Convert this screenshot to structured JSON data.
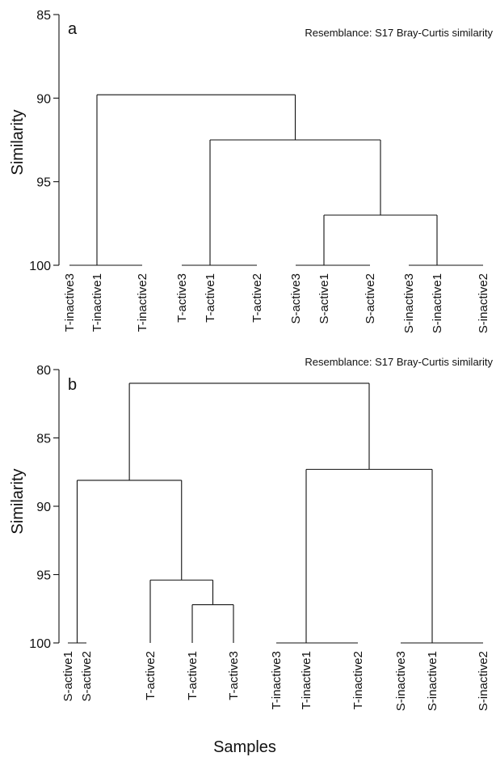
{
  "chart_data": [
    {
      "type": "dendrogram",
      "panel": "a",
      "subtitle": "Resemblance: S17 Bray-Curtis similarity",
      "ylabel": "Similarity",
      "ylim": [
        85,
        100
      ],
      "yticks": [
        85,
        90,
        95,
        100
      ],
      "leaves": [
        "T-inactive3",
        "T-inactive1",
        "T-inactive2",
        "T-active3",
        "T-active1",
        "T-active2",
        "S-active3",
        "S-active1",
        "S-active2",
        "S-inactive3",
        "S-inactive1",
        "S-inactive2"
      ],
      "leaf_groups": [
        {
          "members": [
            0,
            1,
            2
          ],
          "stem_leaf": 1,
          "similarity": 100
        },
        {
          "members": [
            3,
            4,
            5
          ],
          "stem_leaf": 4,
          "similarity": 100
        },
        {
          "members": [
            6,
            7,
            8
          ],
          "stem_leaf": 7,
          "similarity": 100
        },
        {
          "members": [
            9,
            10,
            11
          ],
          "stem_leaf": 10,
          "similarity": 100
        }
      ],
      "merges": [
        {
          "left": "g2",
          "right": "g3",
          "similarity": 97.0
        },
        {
          "left": "g1",
          "right": "m0",
          "similarity": 92.5
        },
        {
          "left": "g0",
          "right": "m1",
          "similarity": 89.8
        }
      ]
    },
    {
      "type": "dendrogram",
      "panel": "b",
      "subtitle": "Resemblance: S17 Bray-Curtis similarity",
      "ylabel": "Similarity",
      "xlabel": "Samples",
      "ylim": [
        80,
        100
      ],
      "yticks": [
        80,
        85,
        90,
        95,
        100
      ],
      "leaves": [
        "S-active1",
        "S-active2",
        "T-active2",
        "T-active1",
        "T-active3",
        "T-inactive3",
        "T-inactive1",
        "T-inactive2",
        "S-inactive3",
        "S-inactive1",
        "S-inactive2"
      ],
      "leaf_groups": [
        {
          "members": [
            0,
            1
          ],
          "stem_x_between": [
            0,
            1
          ],
          "similarity": 100
        },
        {
          "members": [
            5,
            6,
            7
          ],
          "stem_leaf": 6,
          "similarity": 100
        },
        {
          "members": [
            8,
            9,
            10
          ],
          "stem_leaf": 9,
          "similarity": 100
        }
      ],
      "merges": [
        {
          "left": "leaf3",
          "right": "leaf4",
          "similarity": 97.2
        },
        {
          "left": "leaf2",
          "right": "m0",
          "similarity": 95.4
        },
        {
          "left": "g0",
          "right": "m1",
          "similarity": 88.1
        },
        {
          "left": "g1",
          "right": "g2",
          "similarity": 87.3
        },
        {
          "left": "m2",
          "right": "m3",
          "similarity": 81.0
        }
      ]
    }
  ]
}
